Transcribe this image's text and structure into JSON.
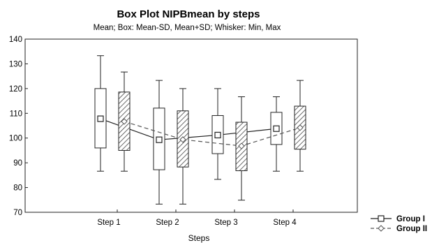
{
  "chart_data": {
    "type": "box",
    "title": "Box Plot NIPBmean by steps",
    "subtitle": "Mean;  Box: Mean-SD, Mean+SD;  Whisker: Min, Max",
    "xlabel": "Steps",
    "ylabel": "",
    "ylim": [
      70,
      140
    ],
    "yticks": [
      70,
      80,
      90,
      100,
      110,
      120,
      130,
      140
    ],
    "categories": [
      "Step 1",
      "Step 2",
      "Step 3",
      "Step 4"
    ],
    "grid": false,
    "legend_position": "bottom-right",
    "series": [
      {
        "name": "Group I",
        "mean": [
          107.8,
          99.3,
          101.2,
          103.8
        ],
        "box_low": [
          96.0,
          87.2,
          93.7,
          97.4
        ],
        "box_high": [
          120.0,
          112.1,
          109.1,
          110.4
        ],
        "whisker_min": [
          86.6,
          73.3,
          83.3,
          86.6
        ],
        "whisker_max": [
          133.3,
          123.3,
          120.0,
          116.7
        ],
        "marker": "square",
        "line": "solid",
        "fill": "plain",
        "color": "#222222"
      },
      {
        "name": "Group II",
        "mean": [
          106.7,
          99.4,
          96.8,
          104.2
        ],
        "box_low": [
          95.0,
          88.3,
          86.8,
          95.5
        ],
        "box_high": [
          118.6,
          111.0,
          106.4,
          112.9
        ],
        "whisker_min": [
          86.6,
          73.3,
          74.9,
          86.6
        ],
        "whisker_max": [
          126.7,
          120.0,
          116.7,
          123.3
        ],
        "marker": "diamond",
        "line": "dashed",
        "fill": "hatched",
        "color": "#555555"
      }
    ]
  }
}
